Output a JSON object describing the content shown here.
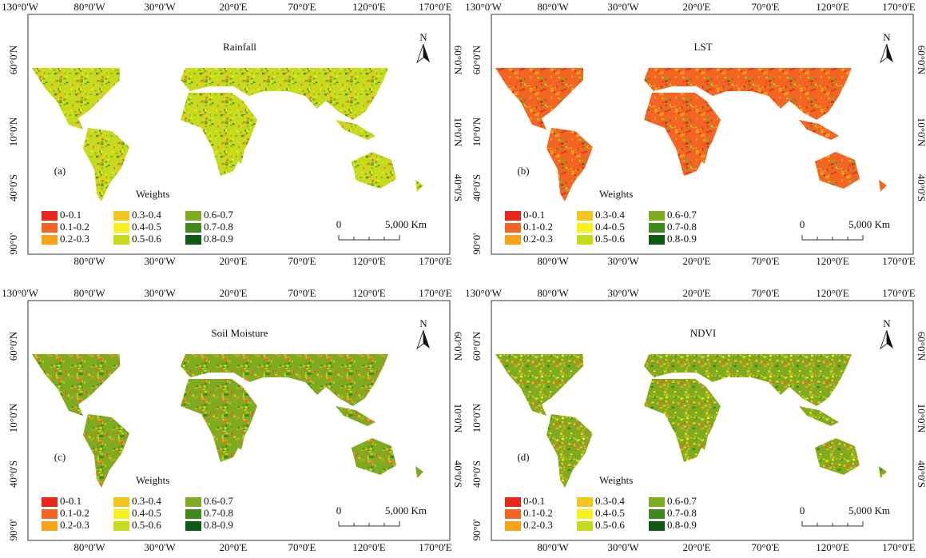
{
  "axes": {
    "top": [
      "130°0'W",
      "80°0'W",
      "30°0'W",
      "20°0'E",
      "70°0'E",
      "120°0'E",
      "170°0'E"
    ],
    "bottom": [
      "80°0'W",
      "30°0'W",
      "20°0'E",
      "70°0'E",
      "120°0'E",
      "170°0'E"
    ],
    "left": [
      "60°0'N",
      "10°0'N",
      "40°0'S",
      "90°0'"
    ],
    "right": [
      "60°0'N",
      "10°0'N",
      "40°0'S"
    ]
  },
  "legend": {
    "title": "Weights",
    "classes": [
      {
        "label": "0-0.1",
        "color": "#e8261c"
      },
      {
        "label": "0.1-0.2",
        "color": "#f26522"
      },
      {
        "label": "0.2-0.3",
        "color": "#f7a21b"
      },
      {
        "label": "0.3-0.4",
        "color": "#f4c421"
      },
      {
        "label": "0.4-0.5",
        "color": "#f7f21e"
      },
      {
        "label": "0.5-0.6",
        "color": "#c6da1e"
      },
      {
        "label": "0.6-0.7",
        "color": "#7eab20"
      },
      {
        "label": "0.7-0.8",
        "color": "#3f8a1c"
      },
      {
        "label": "0.8-0.9",
        "color": "#0e5a14"
      }
    ]
  },
  "scale_bar": {
    "start": "0",
    "end": "5,000 Km"
  },
  "north": "N",
  "panels": [
    {
      "title": "Rainfall",
      "label": "(a)"
    },
    {
      "title": "LST",
      "label": "(b)"
    },
    {
      "title": "Soil Moisture",
      "label": "(c)"
    },
    {
      "title": "NDVI",
      "label": "(d)"
    }
  ]
}
